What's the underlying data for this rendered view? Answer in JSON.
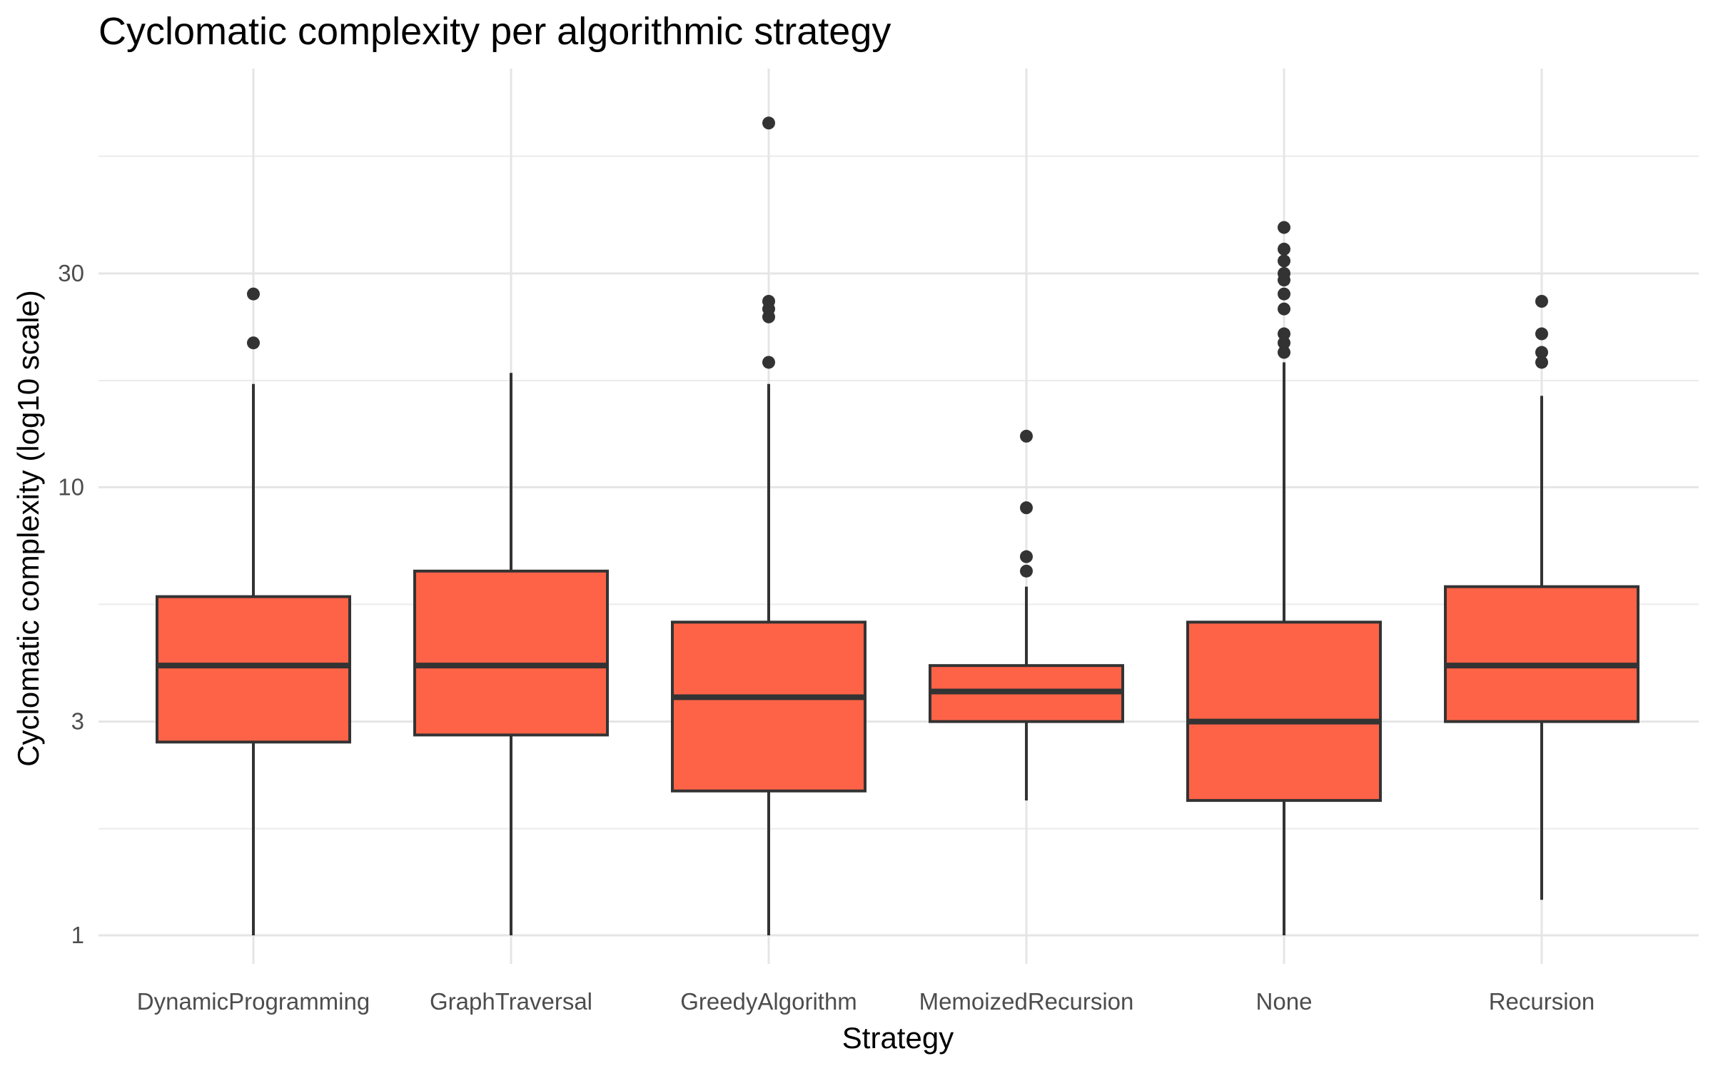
{
  "chart_data": {
    "type": "boxplot",
    "title": "Cyclomatic complexity per algorithmic strategy",
    "xlabel": "Strategy",
    "ylabel": "Cyclomatic complexity (log10 scale)",
    "y_scale": "log10",
    "ylim": [
      0.92,
      72
    ],
    "y_ticks": [
      1,
      3,
      10,
      30
    ],
    "y_tick_labels": [
      "1",
      "3",
      "10",
      "30"
    ],
    "y_minor_ticks": [
      1.73,
      5.48,
      17.3,
      54.8
    ],
    "grid": true,
    "box_fill": "#FF6347",
    "line_color": "#333333",
    "categories": [
      "DynamicProgramming",
      "GraphTraversal",
      "GreedyAlgorithm",
      "MemoizedRecursion",
      "None",
      "Recursion"
    ],
    "boxes": [
      {
        "category": "DynamicProgramming",
        "whisker_low": 1,
        "q1": 2.7,
        "median": 4,
        "q3": 5.7,
        "whisker_high": 17,
        "outliers": [
          21,
          27
        ]
      },
      {
        "category": "GraphTraversal",
        "whisker_low": 1,
        "q1": 2.8,
        "median": 4,
        "q3": 6.5,
        "whisker_high": 18,
        "outliers": []
      },
      {
        "category": "GreedyAlgorithm",
        "whisker_low": 1,
        "q1": 2.1,
        "median": 3.4,
        "q3": 5,
        "whisker_high": 17,
        "outliers": [
          19,
          24,
          25,
          26,
          65
        ]
      },
      {
        "category": "MemoizedRecursion",
        "whisker_low": 2,
        "q1": 3,
        "median": 3.5,
        "q3": 4,
        "whisker_high": 6,
        "outliers": [
          6.5,
          7,
          9,
          13
        ]
      },
      {
        "category": "None",
        "whisker_low": 1,
        "q1": 2,
        "median": 3,
        "q3": 5,
        "whisker_high": 19,
        "outliers": [
          20,
          21,
          22,
          25,
          27,
          29,
          30,
          32,
          34,
          38
        ]
      },
      {
        "category": "Recursion",
        "whisker_low": 1.2,
        "q1": 3,
        "median": 4,
        "q3": 6,
        "whisker_high": 16,
        "outliers": [
          19,
          20,
          22,
          26
        ]
      }
    ]
  }
}
